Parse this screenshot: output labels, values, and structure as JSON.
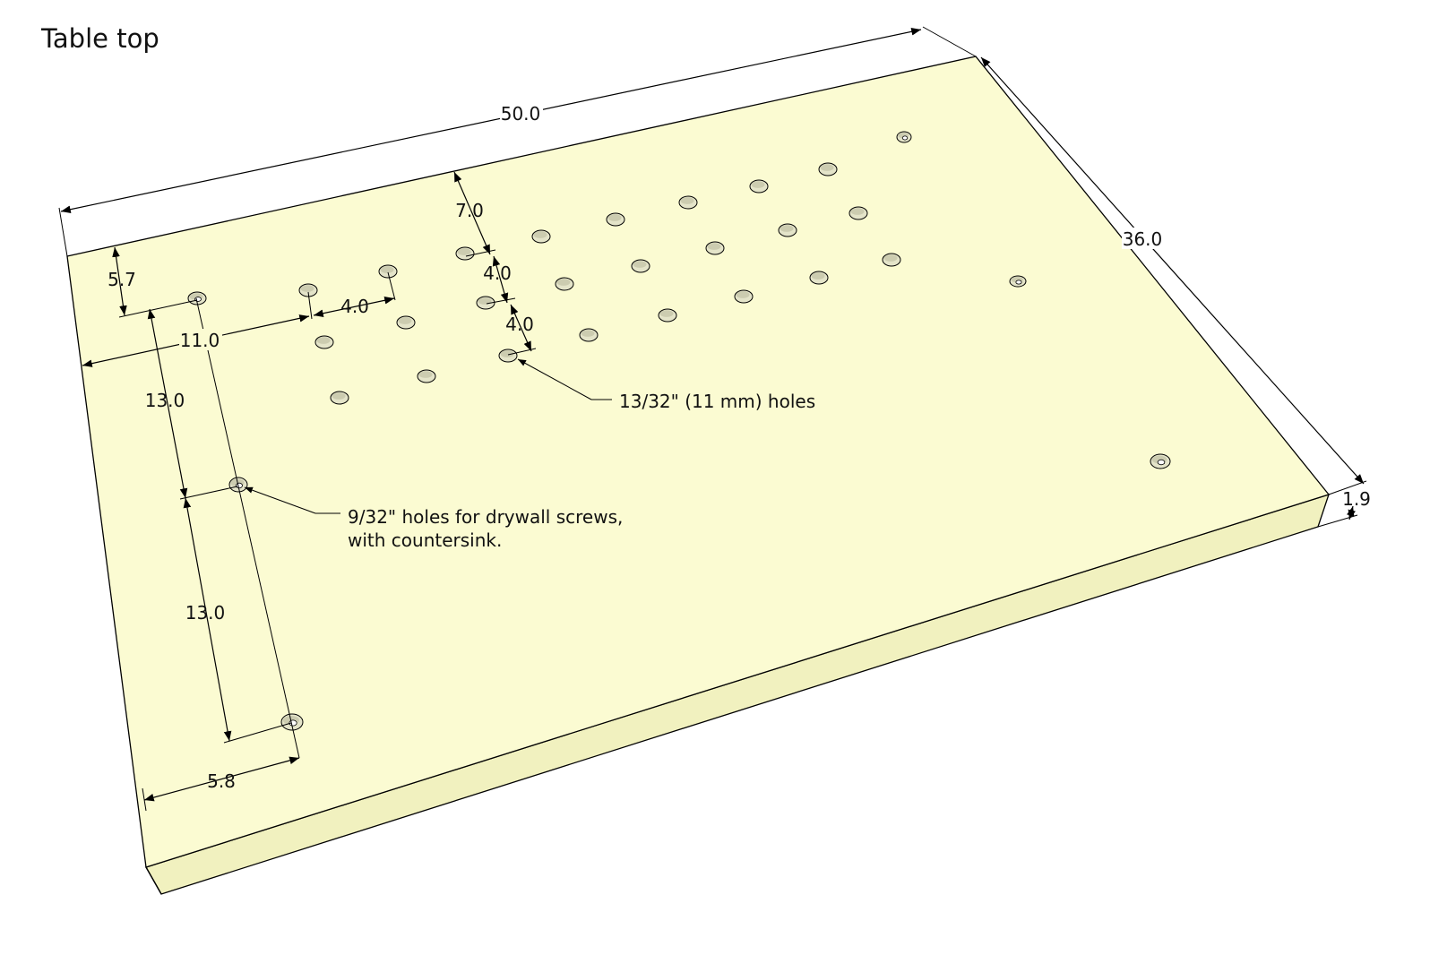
{
  "title": "Table top",
  "colors": {
    "top_face": "#fbfbd2",
    "front_face": "#f1f1bf",
    "edge": "#000000",
    "hole_fill": "#e4e4c9",
    "hole_shade": "#b8b89a"
  },
  "dimensions": {
    "length": "50.0",
    "width": "36.0",
    "thickness": "1.9",
    "first_row_offset": "7.0",
    "row_spacing_1": "4.0",
    "row_spacing_2": "4.0",
    "column_spacing": "4.0",
    "screw_edge_offset": "5.7",
    "grid_offset": "11.0",
    "screw_spacing_1": "13.0",
    "screw_spacing_2": "13.0",
    "screw_side_offset": "5.8"
  },
  "callouts": {
    "peg_holes": "13/32\" (11 mm) holes",
    "screw_holes_line1": "9/32\" holes for drywall screws,",
    "screw_holes_line2": "with countersink."
  }
}
